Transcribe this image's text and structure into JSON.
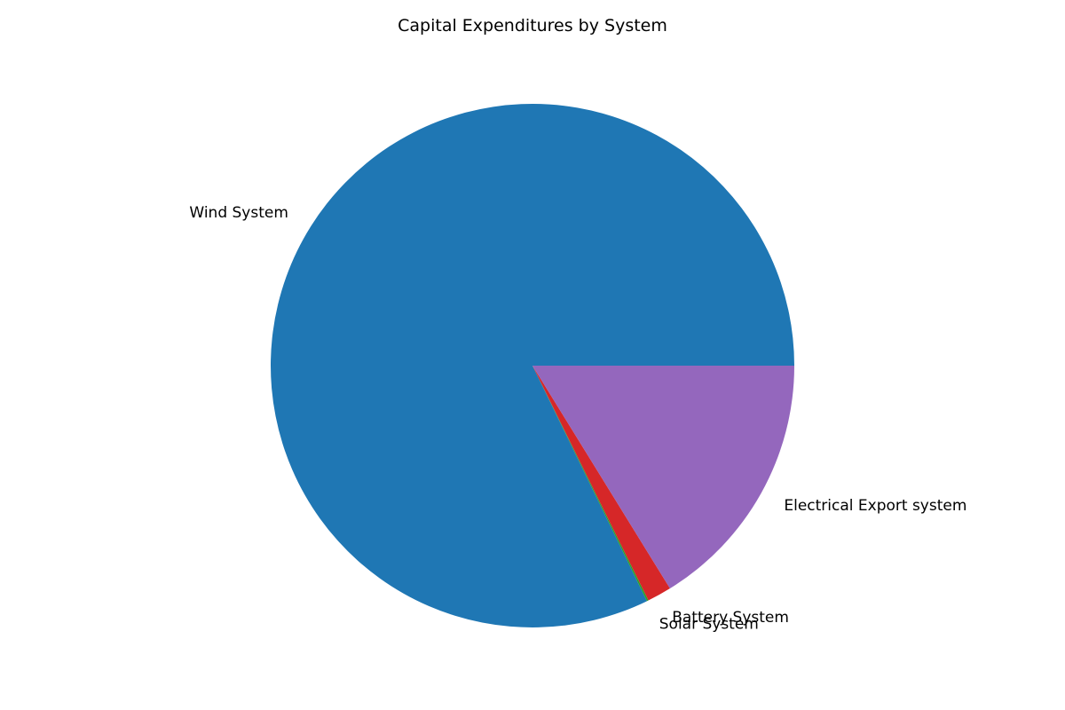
{
  "chart_data": {
    "type": "pie",
    "title": "Capital Expenditures by System",
    "start_angle_deg": 0,
    "direction": "counterclockwise",
    "labels": [
      "Wind System",
      "Solar System",
      "Battery System",
      "Electrical Export system"
    ],
    "values": [
      82.2,
      0.1,
      1.5,
      16.2
    ],
    "colors": [
      "#1f77b4",
      "#2ca02c",
      "#d62728",
      "#9467bd"
    ],
    "legend": false
  }
}
